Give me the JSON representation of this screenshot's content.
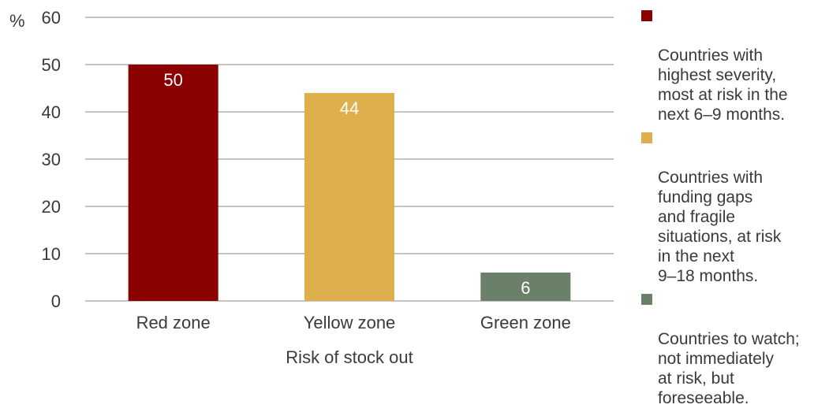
{
  "chart_data": {
    "type": "bar",
    "categories": [
      "Red zone",
      "Yellow zone",
      "Green zone"
    ],
    "values": [
      50,
      44,
      6
    ],
    "data_labels": [
      "50",
      "44",
      "6"
    ],
    "colors": [
      "#8b0000",
      "#ddb04d",
      "#6b8069"
    ],
    "title": "",
    "xlabel": "Risk of stock out",
    "ylabel": "%",
    "ylim": [
      0,
      60
    ],
    "yticks": [
      0,
      10,
      20,
      30,
      40,
      50,
      60
    ],
    "grid": true,
    "legend_position": "right",
    "legend": [
      {
        "label": "Countries with\nhighest severity,\nmost at risk in the\nnext 6–9 months.",
        "color": "#8b0000"
      },
      {
        "label": "Countries with\nfunding gaps\nand fragile\nsituations, at risk\nin the next\n9–18 months.",
        "color": "#ddb04d"
      },
      {
        "label": "Countries to watch;\nnot immediately\nat risk, but\nforeseeable.",
        "color": "#6b8069"
      }
    ]
  }
}
